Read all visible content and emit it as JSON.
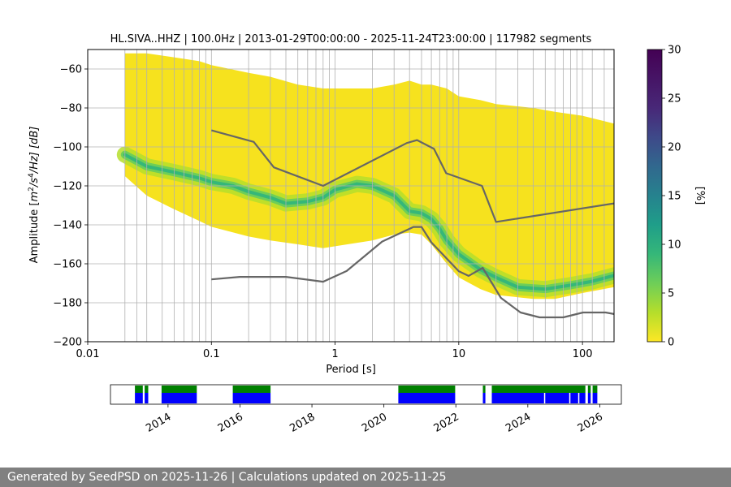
{
  "chart_data": {
    "type": "heatmap",
    "title": "HL.SIVA..HHZ | 100.0Hz | 2013-01-29T00:00:00 - 2025-11-24T23:00:00 | 117982 segments",
    "xlabel": "Period [s]",
    "ylabel": "Amplitude [m²/s⁴/Hz] [dB]",
    "ylabel_parts": {
      "pre": "Amplitude [",
      "m": "m",
      "sup2": "2",
      "mid": "/s",
      "sup4": "4",
      "post": "/Hz] [dB]"
    },
    "x_scale": "log",
    "xlim": [
      0.01,
      180
    ],
    "ylim": [
      -200,
      -50
    ],
    "x_ticks": [
      {
        "value": 0.01,
        "label": "0.01"
      },
      {
        "value": 0.1,
        "label": "0.1"
      },
      {
        "value": 1,
        "label": "1"
      },
      {
        "value": 10,
        "label": "10"
      },
      {
        "value": 100,
        "label": "100"
      }
    ],
    "y_ticks": [
      {
        "value": -60,
        "label": "−60"
      },
      {
        "value": -80,
        "label": "−80"
      },
      {
        "value": -100,
        "label": "−100"
      },
      {
        "value": -120,
        "label": "−120"
      },
      {
        "value": -140,
        "label": "−140"
      },
      {
        "value": -160,
        "label": "−160"
      },
      {
        "value": -180,
        "label": "−180"
      },
      {
        "value": -200,
        "label": "−200"
      }
    ],
    "period_gridlines": [
      0.02,
      0.025,
      0.03,
      0.04,
      0.05,
      0.06,
      0.07,
      0.08,
      0.09,
      0.1,
      0.2,
      0.3,
      0.4,
      0.5,
      0.6,
      0.7,
      0.8,
      0.9,
      1,
      2,
      3,
      4,
      5,
      6,
      7,
      8,
      9,
      10,
      20,
      30,
      40,
      50,
      60,
      70,
      80,
      90,
      100,
      120,
      150
    ],
    "psd_envelope": {
      "period": [
        0.02,
        0.03,
        0.05,
        0.08,
        0.1,
        0.2,
        0.3,
        0.5,
        0.8,
        1,
        2,
        3,
        4,
        5,
        6,
        8,
        10,
        15,
        20,
        40,
        60,
        100,
        180
      ],
      "upper_db": [
        -52,
        -52,
        -54,
        -56,
        -58,
        -62,
        -64,
        -68,
        -70,
        -70,
        -70,
        -68,
        -66,
        -68,
        -68,
        -70,
        -74,
        -76,
        -78,
        -80,
        -82,
        -84,
        -88
      ],
      "lower_db": [
        -115,
        -125,
        -132,
        -138,
        -141,
        -146,
        -148,
        -150,
        -152,
        -151,
        -148,
        -145,
        -144,
        -145,
        -150,
        -160,
        -167,
        -173,
        -176,
        -178,
        -178,
        -175,
        -172
      ]
    },
    "mode_curve": {
      "period": [
        0.02,
        0.03,
        0.05,
        0.08,
        0.1,
        0.15,
        0.2,
        0.3,
        0.4,
        0.6,
        0.8,
        1,
        1.5,
        2,
        3,
        4,
        5,
        6,
        7,
        8,
        10,
        15,
        20,
        30,
        50,
        80,
        120,
        180
      ],
      "db": [
        -104,
        -110,
        -113,
        -116,
        -118,
        -120,
        -123,
        -126,
        -129,
        -128,
        -126,
        -122,
        -119,
        -120,
        -125,
        -133,
        -134,
        -137,
        -142,
        -148,
        -155,
        -163,
        -167,
        -172,
        -173,
        -171,
        -169,
        -166
      ]
    },
    "nhnm": {
      "period": [
        0.1,
        0.22,
        0.32,
        0.8,
        3.8,
        4.6,
        6.3,
        7.9,
        15.4,
        20,
        180
      ],
      "db": [
        -91.5,
        -97.4,
        -110.5,
        -120,
        -98,
        -96.5,
        -101,
        -113.5,
        -120,
        -138.5,
        -129
      ]
    },
    "nlnm": {
      "period": [
        0.1,
        0.17,
        0.4,
        0.8,
        1.24,
        2.4,
        4.3,
        5,
        6,
        10,
        12,
        15.6,
        21.9,
        31.6,
        45,
        70,
        101,
        154,
        180
      ],
      "db": [
        -168,
        -166.7,
        -166.7,
        -169.2,
        -163.7,
        -148.6,
        -141.1,
        -141.1,
        -149,
        -163.8,
        -166.2,
        -162.1,
        -177.5,
        -185,
        -187.5,
        -187.5,
        -185,
        -185,
        -185.8
      ]
    },
    "colorbar": {
      "label": "[%]",
      "range": [
        0,
        30
      ],
      "colormap": "viridis",
      "ticks": [
        {
          "value": 0,
          "label": "0"
        },
        {
          "value": 5,
          "label": "5"
        },
        {
          "value": 10,
          "label": "10"
        },
        {
          "value": 15,
          "label": "15"
        },
        {
          "value": 20,
          "label": "20"
        },
        {
          "value": 25,
          "label": "25"
        },
        {
          "value": 30,
          "label": "30"
        }
      ]
    },
    "availability": {
      "type": "timeline",
      "xlim": [
        2012.4,
        2026.6
      ],
      "year_ticks": [
        "2014",
        "2016",
        "2018",
        "2020",
        "2022",
        "2024",
        "2026"
      ],
      "segments": [
        [
          2013.08,
          2013.3
        ],
        [
          2013.35,
          2013.45
        ],
        [
          2013.82,
          2014.8
        ],
        [
          2015.8,
          2016.85
        ],
        [
          2020.4,
          2021.98
        ],
        [
          2022.75,
          2022.82
        ],
        [
          2023.0,
          2025.6
        ],
        [
          2025.67,
          2025.75
        ],
        [
          2025.8,
          2025.93
        ]
      ],
      "gaps_in_blue": [
        2024.45,
        2025.15,
        2025.4
      ]
    },
    "line_colors": {
      "noise_models": "#666666",
      "availability_full": "#0000ff",
      "availability_partial": "#008000"
    }
  },
  "footer": {
    "text": "Generated by SeedPSD on 2025-11-26 | Calculations updated on 2025-11-25"
  }
}
